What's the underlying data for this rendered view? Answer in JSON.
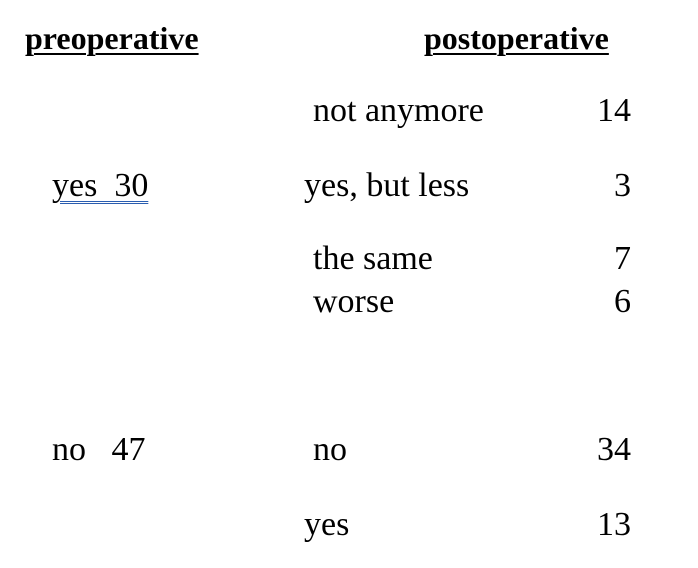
{
  "headers": {
    "preoperative": "preoperative",
    "postoperative": "postoperative"
  },
  "groups": [
    {
      "pre_label": "yes  30",
      "rows": [
        {
          "label": "not anymore",
          "count": "14"
        },
        {
          "label": "yes, but less",
          "count": "3"
        },
        {
          "label": "the same",
          "count": "7"
        },
        {
          "label": "worse",
          "count": "6"
        }
      ]
    },
    {
      "pre_label": "no   47",
      "rows": [
        {
          "label": "no",
          "count": "34"
        },
        {
          "label": "yes",
          "count": "13"
        }
      ]
    }
  ]
}
